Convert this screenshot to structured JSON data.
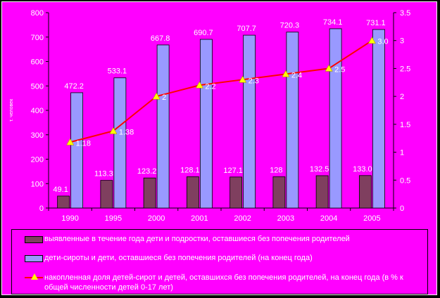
{
  "colors": {
    "background": "#ff00ff",
    "outer": "#000000",
    "bar_identified": "#7f3f5f",
    "bar_orphans": "#9999ff",
    "line": "#ff0000",
    "marker": "#ffff00",
    "text": "#ffffff"
  },
  "chart_data": {
    "type": "bar",
    "categories": [
      "1990",
      "1995",
      "2000",
      "2001",
      "2002",
      "2003",
      "2004",
      "2005"
    ],
    "y_left": {
      "lim": [
        0,
        800
      ],
      "ticks": [
        "0",
        "100",
        "200",
        "300",
        "400",
        "500",
        "600",
        "700",
        "800"
      ],
      "label": "т. человек"
    },
    "y_right": {
      "lim": [
        0,
        3.5
      ],
      "ticks": [
        "0",
        "0.5",
        "1",
        "1.5",
        "2",
        "2.5",
        "3",
        "3.5"
      ]
    },
    "series": [
      {
        "name": "выявленные в течение года дети и подростки, оставшиеся без попечения родителей",
        "type": "bar",
        "axis": "left",
        "values": [
          49.1,
          113.3,
          123.2,
          128.1,
          127.1,
          128,
          132.5,
          133.0
        ],
        "labels": [
          "49.1",
          "113.3",
          "123.2",
          "128.1",
          "127.1",
          "128",
          "132.5",
          "133.0"
        ]
      },
      {
        "name": "дети-сироты и дети, оставшиеся без попечения родителей (на конец года)",
        "type": "bar",
        "axis": "left",
        "values": [
          472.2,
          533.1,
          667.8,
          690.7,
          707.7,
          720.3,
          734.1,
          731.1
        ],
        "labels": [
          "472.2",
          "533.1",
          "667.8",
          "690.7",
          "707.7",
          "720.3",
          "734.1",
          "731.1"
        ]
      },
      {
        "name": "накопленная доля детей-сирот и детей, оставшихся без попечения родителей, на конец года (в % к общей численности детей 0-17 лет)",
        "type": "line",
        "axis": "right",
        "values": [
          1.18,
          1.38,
          2,
          2.2,
          2.3,
          2.4,
          2.5,
          3.0
        ],
        "labels": [
          "1.18",
          "1.38",
          "2",
          "2.2",
          "2.3",
          "2.4",
          "2.5",
          "3.0"
        ]
      }
    ],
    "grid": false,
    "legend_position": "bottom"
  }
}
